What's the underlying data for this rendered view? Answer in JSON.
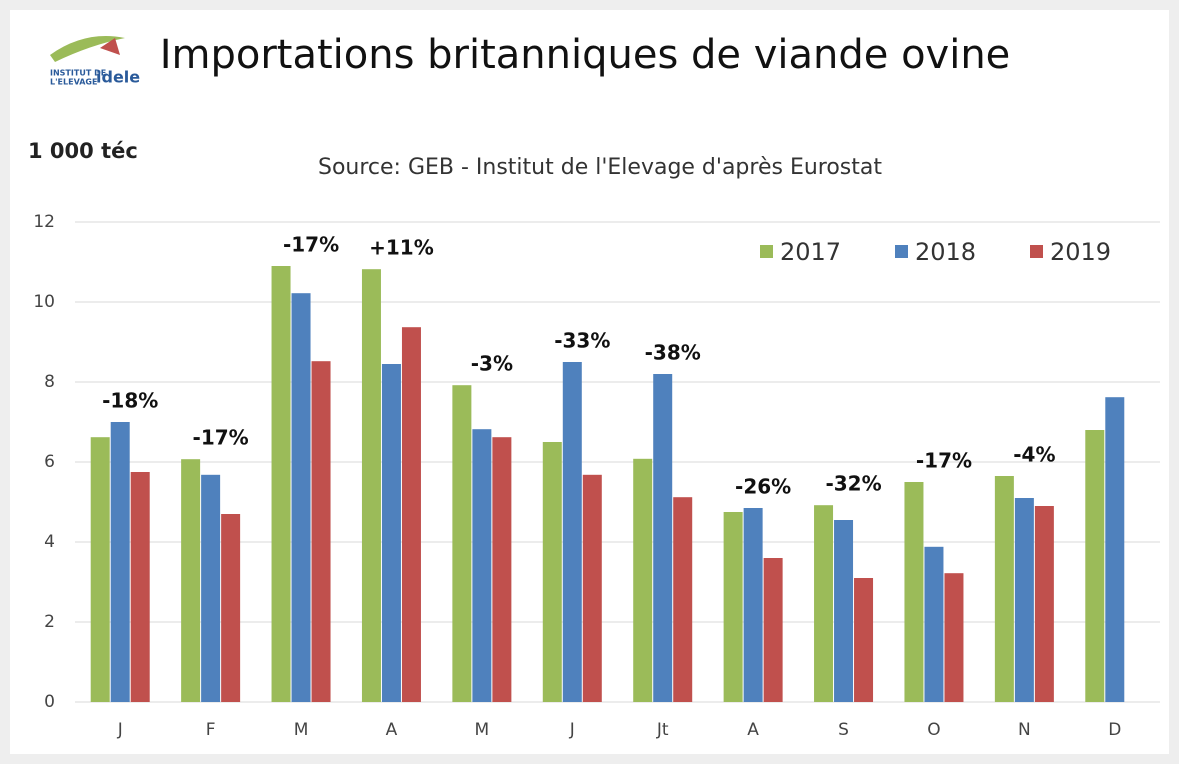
{
  "chart_data": {
    "type": "bar",
    "title": "Importations britanniques de viande ovine",
    "subtitle": "Source: GEB - Institut de l'Elevage d'après Eurostat",
    "y_label": "1 000 téc",
    "logo": {
      "line1": "INSTITUT DE",
      "line2": "L'ELEVAGE",
      "brand": "idele"
    },
    "categories": [
      "J",
      "F",
      "M",
      "A",
      "M",
      "J",
      "Jt",
      "A",
      "S",
      "O",
      "N",
      "D"
    ],
    "series": [
      {
        "name": "2017",
        "color": "#9bbb59",
        "values": [
          6.62,
          6.07,
          10.9,
          10.82,
          7.92,
          6.5,
          6.08,
          4.75,
          4.92,
          5.5,
          5.65,
          6.8
        ]
      },
      {
        "name": "2018",
        "color": "#4f81bd",
        "values": [
          7.0,
          5.68,
          10.22,
          8.45,
          6.82,
          8.5,
          8.2,
          4.85,
          4.55,
          3.88,
          5.1,
          7.62
        ]
      },
      {
        "name": "2019",
        "color": "#c0504d",
        "values": [
          5.75,
          4.7,
          8.52,
          9.37,
          6.62,
          5.68,
          5.12,
          3.6,
          3.1,
          3.22,
          4.9,
          null
        ]
      }
    ],
    "annotations": [
      "-18%",
      "-17%",
      "-17%",
      "+11%",
      "-3%",
      "-33%",
      "-38%",
      "-26%",
      "-32%",
      "-17%",
      "-4%",
      null
    ],
    "ylim": [
      0,
      12
    ],
    "yticks": [
      0,
      2,
      4,
      6,
      8,
      10,
      12
    ],
    "grid": true,
    "legend": "upper right"
  }
}
